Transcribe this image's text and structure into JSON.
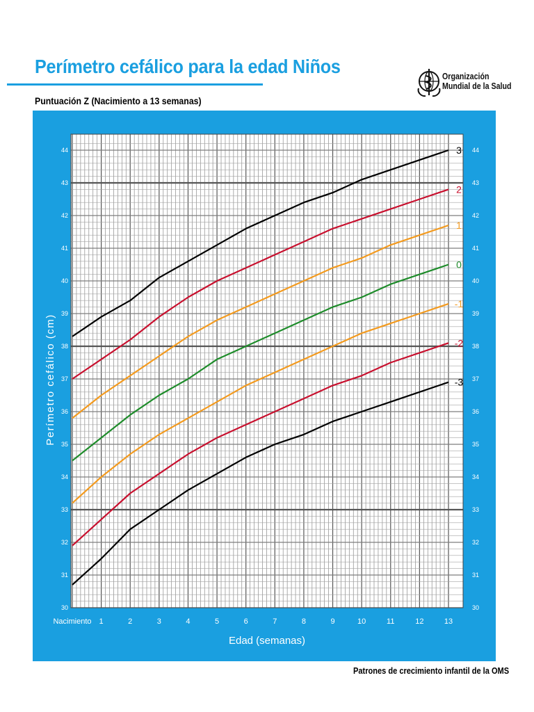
{
  "header": {
    "title": "Perímetro cefálico para la edad  Niños",
    "subtitle": "Puntuación Z (Nacimiento a 13 semanas)"
  },
  "organization": {
    "logo_icon": "who-emblem-icon",
    "name_line1": "Organización",
    "name_line2": "Mundial de la Salud"
  },
  "footer": {
    "text": "Patrones de crecimiento infantil de la OMS"
  },
  "colors": {
    "panel": "#1a9fe0",
    "plot_bg": "#ffffff",
    "title": "#1a9fe0",
    "black": "#000000",
    "red": "#c8102e",
    "orange": "#f39a1e",
    "green": "#1e8c2a"
  },
  "chart_data": {
    "type": "line",
    "title": "Perímetro cefálico para la edad  Niños",
    "subtitle": "Puntuación Z (Nacimiento a 13 semanas)",
    "xlabel": "Edad (semanas)",
    "ylabel": "Perímetro cefálico (cm)",
    "x_tick_labels": [
      "Nacimiento",
      "1",
      "2",
      "3",
      "4",
      "5",
      "6",
      "7",
      "8",
      "9",
      "10",
      "11",
      "12",
      "13"
    ],
    "xlim": [
      0,
      13
    ],
    "ylim": [
      30,
      44
    ],
    "y_ticks": [
      30,
      31,
      32,
      33,
      34,
      35,
      36,
      37,
      38,
      39,
      40,
      41,
      42,
      43,
      44
    ],
    "grid": true,
    "x": [
      0,
      1,
      2,
      3,
      4,
      5,
      6,
      7,
      8,
      9,
      10,
      11,
      12,
      13
    ],
    "series": [
      {
        "name": "3",
        "color_key": "black",
        "values": [
          38.3,
          38.9,
          39.4,
          40.1,
          40.6,
          41.1,
          41.6,
          42.0,
          42.4,
          42.7,
          43.1,
          43.4,
          43.7,
          44.0
        ]
      },
      {
        "name": "2",
        "color_key": "red",
        "values": [
          37.0,
          37.6,
          38.2,
          38.9,
          39.5,
          40.0,
          40.4,
          40.8,
          41.2,
          41.6,
          41.9,
          42.2,
          42.5,
          42.8
        ]
      },
      {
        "name": "1",
        "color_key": "orange",
        "values": [
          35.8,
          36.5,
          37.1,
          37.7,
          38.3,
          38.8,
          39.2,
          39.6,
          40.0,
          40.4,
          40.7,
          41.1,
          41.4,
          41.7
        ]
      },
      {
        "name": "0",
        "color_key": "green",
        "values": [
          34.5,
          35.2,
          35.9,
          36.5,
          37.0,
          37.6,
          38.0,
          38.4,
          38.8,
          39.2,
          39.5,
          39.9,
          40.2,
          40.5
        ]
      },
      {
        "name": "-1",
        "color_key": "orange",
        "values": [
          33.2,
          34.0,
          34.7,
          35.3,
          35.8,
          36.3,
          36.8,
          37.2,
          37.6,
          38.0,
          38.4,
          38.7,
          39.0,
          39.3
        ]
      },
      {
        "name": "-2",
        "color_key": "red",
        "values": [
          31.9,
          32.7,
          33.5,
          34.1,
          34.7,
          35.2,
          35.6,
          36.0,
          36.4,
          36.8,
          37.1,
          37.5,
          37.8,
          38.1
        ]
      },
      {
        "name": "-3",
        "color_key": "black",
        "values": [
          30.7,
          31.5,
          32.4,
          33.0,
          33.6,
          34.1,
          34.6,
          35.0,
          35.3,
          35.7,
          36.0,
          36.3,
          36.6,
          36.9
        ]
      }
    ]
  }
}
